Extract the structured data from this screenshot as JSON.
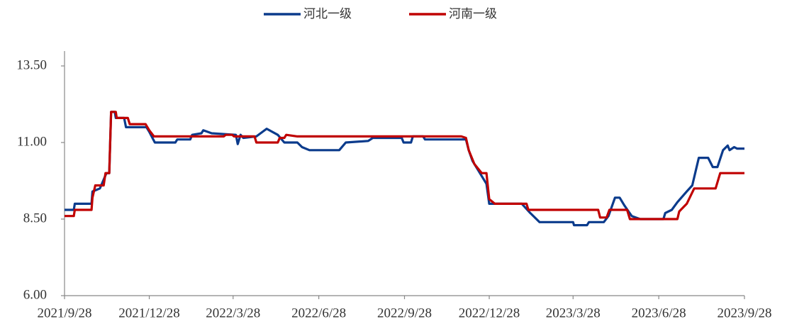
{
  "chart_data": {
    "type": "line",
    "xlim": [
      "2021/9/28",
      "2023/9/28"
    ],
    "xticks": [
      "2021/9/28",
      "2021/12/28",
      "2022/3/28",
      "2022/6/28",
      "2022/9/28",
      "2022/12/28",
      "2023/3/28",
      "2023/6/28",
      "2023/9/28"
    ],
    "ylim": [
      6,
      14
    ],
    "yticks": [
      {
        "value": 6,
        "label": "6.00"
      },
      {
        "value": 8.5,
        "label": "8.50"
      },
      {
        "value": 11,
        "label": "11.00"
      },
      {
        "value": 13.5,
        "label": "13.50"
      }
    ],
    "legend": "top",
    "series": [
      {
        "name": "河北一级",
        "color": "#0b3b8c",
        "x": [
          "2021/9/28",
          "2021/10/8",
          "2021/10/9",
          "2021/10/27",
          "2021/10/28",
          "2021/11/5",
          "2021/11/12",
          "2021/11/15",
          "2021/11/17",
          "2021/11/21",
          "2021/11/22",
          "2021/12/1",
          "2021/12/3",
          "2021/12/25",
          "2021/12/28",
          "2022/1/3",
          "2022/1/25",
          "2022/1/27",
          "2022/2/10",
          "2022/2/12",
          "2022/2/22",
          "2022/2/24",
          "2022/3/5",
          "2022/3/31",
          "2022/4/2",
          "2022/4/5",
          "2022/4/8",
          "2022/4/22",
          "2022/5/3",
          "2022/5/15",
          "2022/5/22",
          "2022/6/5",
          "2022/6/10",
          "2022/6/18",
          "2022/7/20",
          "2022/7/27",
          "2022/8/20",
          "2022/8/25",
          "2022/9/25",
          "2022/9/27",
          "2022/10/5",
          "2022/10/7",
          "2022/10/18",
          "2022/10/20",
          "2022/12/3",
          "2022/12/6",
          "2022/12/10",
          "2022/12/18",
          "2022/12/25",
          "2022/12/28",
          "2023/2/1",
          "2023/2/10",
          "2023/2/20",
          "2023/3/28",
          "2023/3/29",
          "2023/4/12",
          "2023/4/14",
          "2023/4/30",
          "2023/5/5",
          "2023/5/12",
          "2023/5/17",
          "2023/5/22",
          "2023/5/30",
          "2023/6/8",
          "2023/7/3",
          "2023/7/5",
          "2023/7/12",
          "2023/7/18",
          "2023/7/28",
          "2023/8/3",
          "2023/8/10",
          "2023/8/20",
          "2023/8/25",
          "2023/8/30",
          "2023/9/5",
          "2023/9/10",
          "2023/9/12",
          "2023/9/17",
          "2023/9/20",
          "2023/9/28"
        ],
        "values": [
          8.8,
          8.8,
          9.0,
          9.0,
          9.4,
          9.5,
          10.0,
          10.0,
          12.0,
          12.0,
          11.8,
          11.8,
          11.5,
          11.5,
          11.35,
          11.0,
          11.0,
          11.1,
          11.1,
          11.25,
          11.3,
          11.4,
          11.3,
          11.25,
          10.95,
          11.25,
          11.15,
          11.2,
          11.45,
          11.25,
          11.0,
          11.0,
          10.85,
          10.75,
          10.75,
          11.0,
          11.05,
          11.15,
          11.15,
          11.0,
          11.0,
          11.2,
          11.2,
          11.1,
          11.1,
          10.75,
          10.4,
          10.0,
          9.65,
          9.0,
          9.0,
          8.7,
          8.4,
          8.4,
          8.3,
          8.3,
          8.4,
          8.4,
          8.6,
          9.2,
          9.2,
          8.95,
          8.6,
          8.5,
          8.5,
          8.7,
          8.8,
          9.05,
          9.4,
          9.6,
          10.5,
          10.5,
          10.2,
          10.2,
          10.75,
          10.9,
          10.75,
          10.85,
          10.8,
          10.8
        ]
      },
      {
        "name": "河南一级",
        "color": "#c00000",
        "x": [
          "2021/9/28",
          "2021/10/8",
          "2021/10/9",
          "2021/10/27",
          "2021/10/28",
          "2021/10/31",
          "2021/11/9",
          "2021/11/11",
          "2021/11/15",
          "2021/11/17",
          "2021/11/22",
          "2021/11/23",
          "2021/12/5",
          "2021/12/7",
          "2021/12/24",
          "2021/12/28",
          "2022/1/2",
          "2022/3/18",
          "2022/3/20",
          "2022/3/27",
          "2022/3/29",
          "2022/4/20",
          "2022/4/22",
          "2022/5/15",
          "2022/5/17",
          "2022/5/22",
          "2022/5/24",
          "2022/6/5",
          "2022/11/28",
          "2022/12/3",
          "2022/12/6",
          "2022/12/12",
          "2022/12/20",
          "2022/12/25",
          "2022/12/28",
          "2023/1/3",
          "2023/2/6",
          "2023/2/8",
          "2023/4/24",
          "2023/4/26",
          "2023/5/3",
          "2023/5/6",
          "2023/5/25",
          "2023/5/28",
          "2023/7/18",
          "2023/7/20",
          "2023/7/28",
          "2023/8/5",
          "2023/8/28",
          "2023/9/2",
          "2023/9/28"
        ],
        "values": [
          8.6,
          8.6,
          8.8,
          8.8,
          9.2,
          9.6,
          9.6,
          10.0,
          10.0,
          12.0,
          12.0,
          11.8,
          11.8,
          11.6,
          11.6,
          11.4,
          11.2,
          11.2,
          11.25,
          11.25,
          11.2,
          11.2,
          11.0,
          11.0,
          11.15,
          11.15,
          11.25,
          11.2,
          11.2,
          11.15,
          10.75,
          10.3,
          10.0,
          10.0,
          9.15,
          9.0,
          9.0,
          8.8,
          8.8,
          8.55,
          8.55,
          8.8,
          8.8,
          8.5,
          8.5,
          8.75,
          9.0,
          9.5,
          9.5,
          10.0,
          10.0
        ]
      }
    ]
  }
}
